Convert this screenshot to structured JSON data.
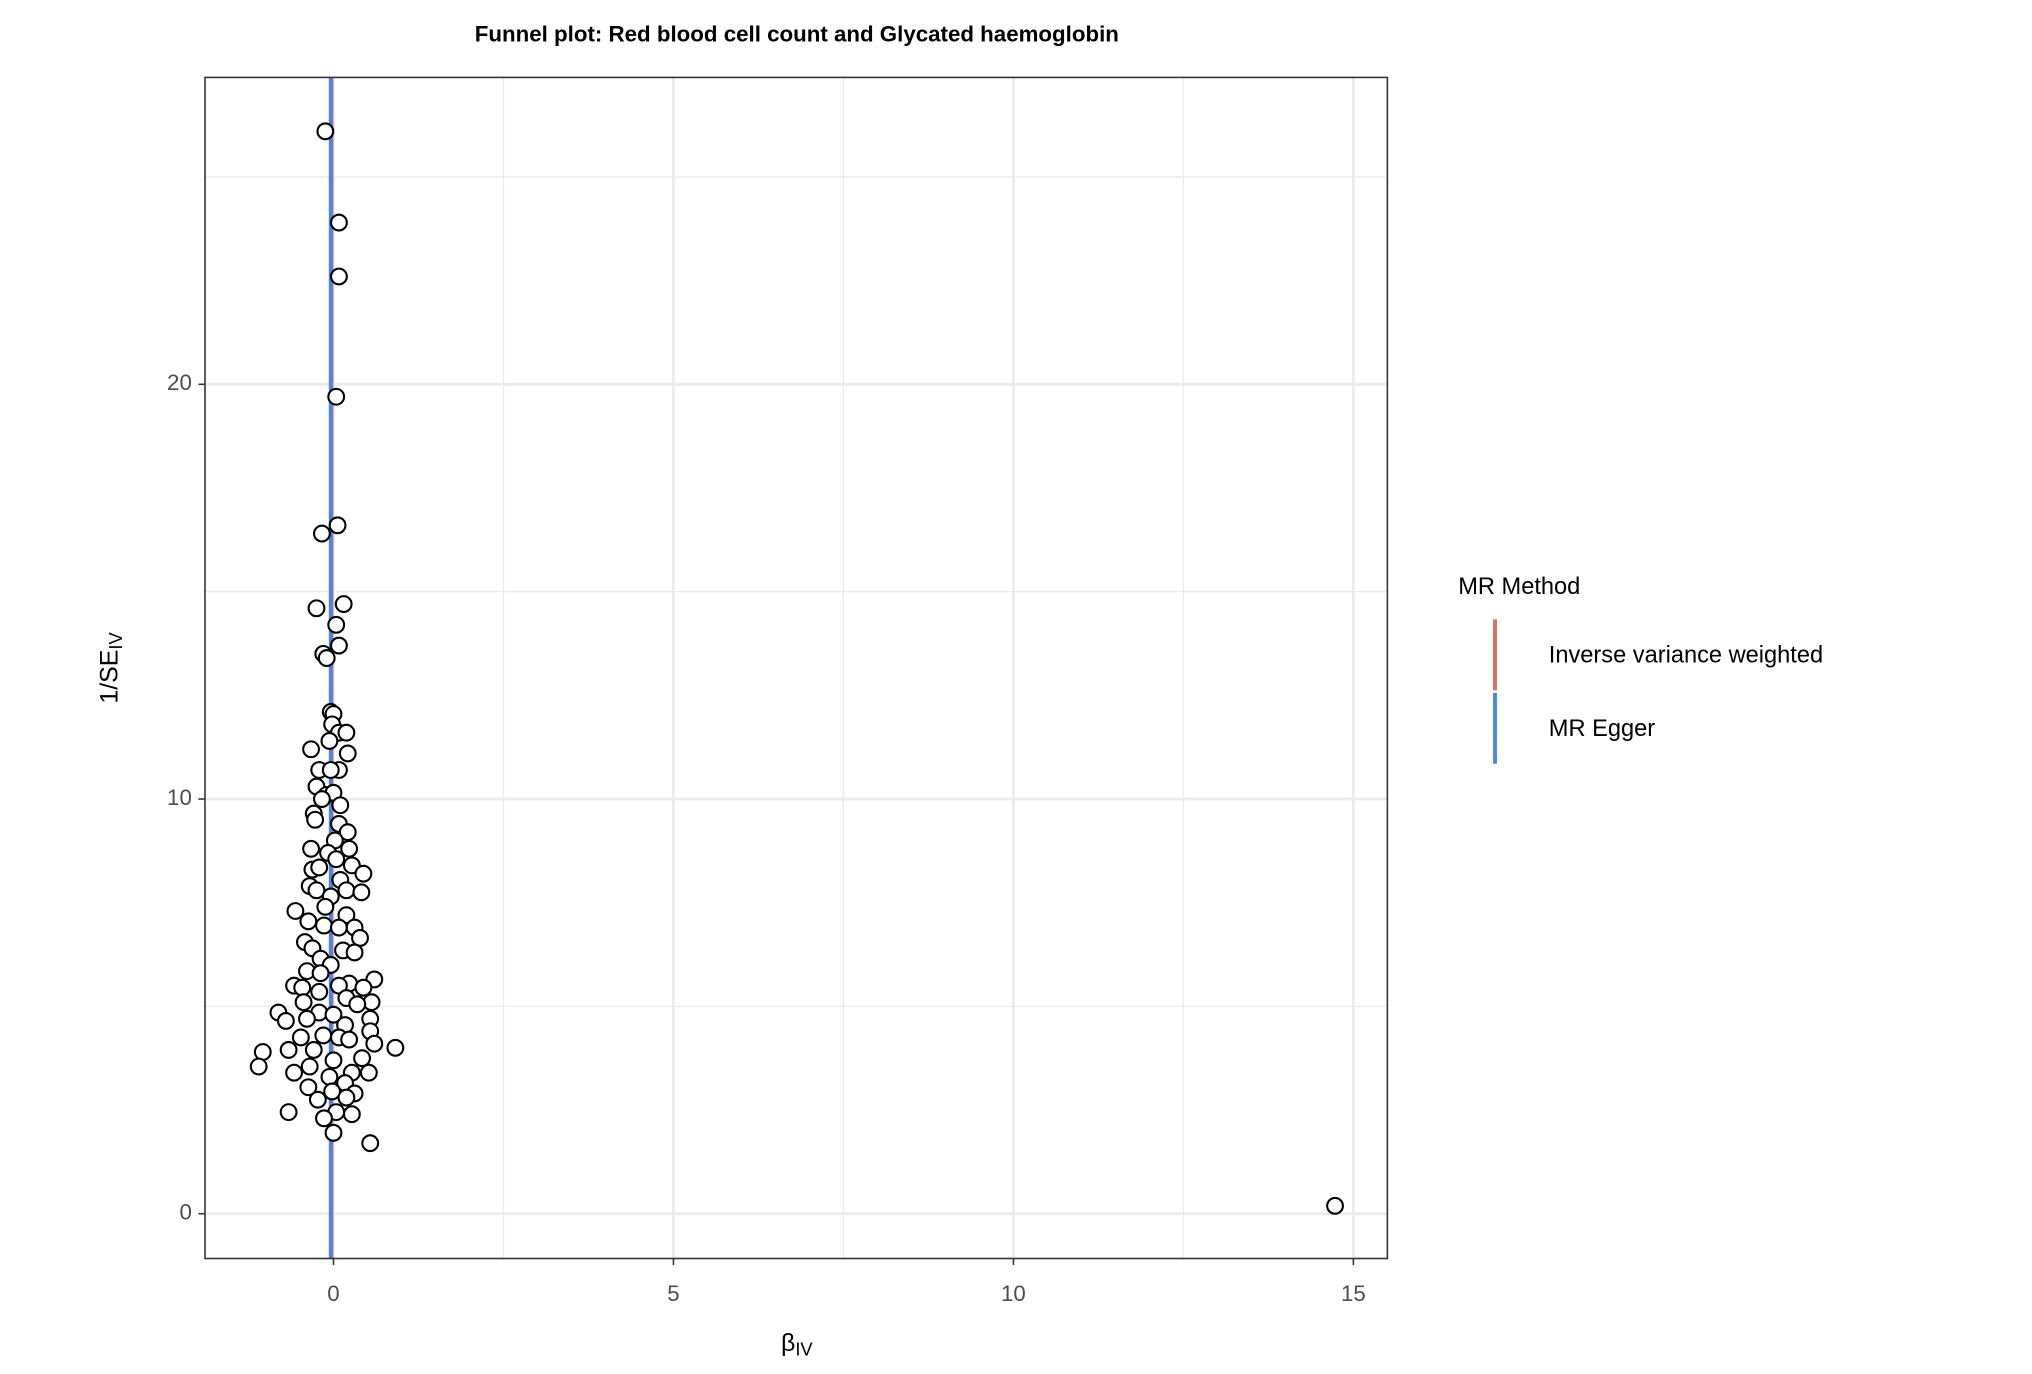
{
  "chart_data": {
    "type": "scatter",
    "title": "Funnel plot: Red blood cell count and Glycated haemoglobin",
    "xlabel": "β",
    "xlabel_sub": "IV",
    "ylabel": "1/SE",
    "ylabel_sub": "IV",
    "xlim": [
      -1.89,
      15.5
    ],
    "ylim": [
      -1.08,
      27.4
    ],
    "xticks": [
      0,
      5,
      10,
      15
    ],
    "yticks": [
      0,
      10,
      20
    ],
    "xminor": [
      2.5,
      7.5,
      12.5
    ],
    "yminor": [
      5,
      15,
      25
    ],
    "grid": true,
    "point_fill": "#ffffff",
    "point_stroke": "#000000",
    "series": [
      {
        "x": [
          -0.12,
          0.08,
          0.08,
          0.04,
          0.06,
          -0.17,
          -0.25,
          0.15,
          0.04,
          0.08,
          -0.15,
          -0.1,
          -0.04,
          0,
          -0.02,
          0.08,
          0.19,
          -0.33,
          0.21,
          -0.06,
          0.08,
          -0.21,
          -0.04,
          -0.25,
          -0.1,
          0,
          -0.17,
          0.1,
          -0.29,
          -0.27,
          0.08,
          0.21,
          0.02,
          -0.33,
          0.23,
          -0.08,
          0.04,
          -0.31,
          -0.21,
          0.27,
          0.44,
          0.1,
          -0.35,
          -0.25,
          0.19,
          0.41,
          -0.04,
          -0.12,
          -0.56,
          0.19,
          -0.37,
          -0.14,
          0.08,
          0.31,
          0.39,
          -0.42,
          -0.31,
          0.14,
          0.31,
          -0.19,
          -0.04,
          -0.39,
          -0.19,
          0.6,
          0.23,
          -0.58,
          -0.46,
          0.08,
          0.44,
          -0.21,
          0.19,
          0.56,
          -0.44,
          0.35,
          -0.81,
          -0.21,
          0,
          0.54,
          -0.7,
          -0.39,
          0.17,
          0.54,
          -0.15,
          -0.48,
          0.08,
          0.23,
          0.6,
          0.91,
          -0.66,
          -0.29,
          -1.04,
          0.42,
          0,
          -0.35,
          -1.1,
          -0.58,
          0.27,
          0.52,
          -0.06,
          0.17,
          -0.37,
          -0.02,
          0.31,
          -0.23,
          0.19,
          -0.66,
          0.04,
          0.27,
          -0.14,
          0,
          0.54,
          14.73
        ],
        "y": [
          26.1,
          23.9,
          22.6,
          19.7,
          16.6,
          16.4,
          14.6,
          14.7,
          14.2,
          13.7,
          13.5,
          13.4,
          12.1,
          12.05,
          11.8,
          11.6,
          11.6,
          11.2,
          11.1,
          11.4,
          10.7,
          10.7,
          10.7,
          10.3,
          10.1,
          10.15,
          10,
          9.85,
          9.65,
          9.5,
          9.4,
          9.2,
          9,
          8.8,
          8.8,
          8.7,
          8.55,
          8.3,
          8.35,
          8.4,
          8.2,
          8.05,
          7.9,
          7.8,
          7.8,
          7.75,
          7.65,
          7.4,
          7.3,
          7.2,
          7.05,
          6.95,
          6.9,
          6.9,
          6.65,
          6.55,
          6.4,
          6.35,
          6.3,
          6.15,
          6,
          5.85,
          5.8,
          5.65,
          5.55,
          5.5,
          5.45,
          5.5,
          5.45,
          5.35,
          5.2,
          5.1,
          5.1,
          5.05,
          4.85,
          4.85,
          4.8,
          4.7,
          4.65,
          4.7,
          4.55,
          4.4,
          4.3,
          4.25,
          4.25,
          4.2,
          4.1,
          4,
          3.95,
          3.95,
          3.9,
          3.75,
          3.7,
          3.55,
          3.55,
          3.4,
          3.4,
          3.4,
          3.3,
          3.15,
          3.05,
          2.95,
          2.9,
          2.75,
          2.8,
          2.45,
          2.45,
          2.4,
          2.3,
          1.95,
          1.7,
          0.19
        ]
      }
    ],
    "lines": [
      {
        "name": "Inverse variance weighted",
        "color": "#e06c5e",
        "value": -0.03
      },
      {
        "name": "MR Egger",
        "color": "#4a86e8",
        "value": -0.04
      }
    ],
    "legend": {
      "title": "MR Method",
      "position": "right"
    }
  }
}
